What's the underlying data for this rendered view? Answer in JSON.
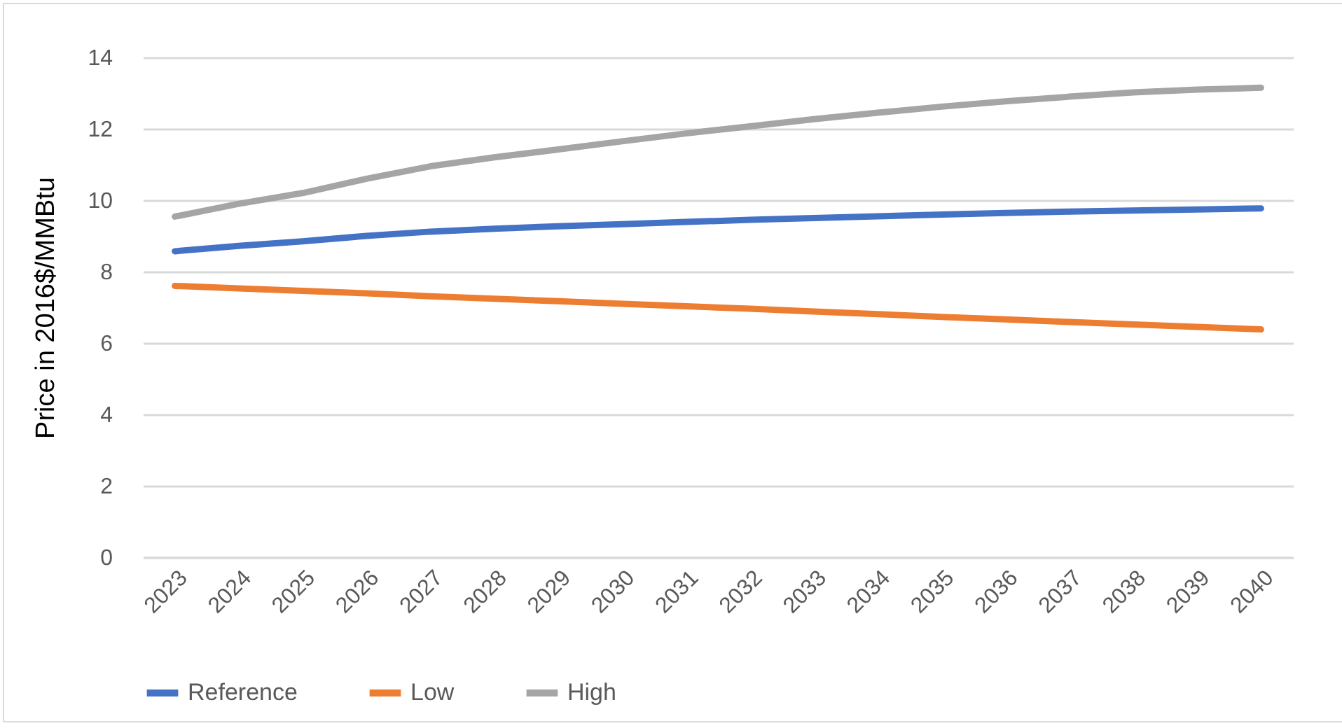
{
  "chart_data": {
    "type": "line",
    "ylabel": "Price in 2016$/MMBtu",
    "categories": [
      "2023",
      "2024",
      "2025",
      "2026",
      "2027",
      "2028",
      "2029",
      "2030",
      "2031",
      "2032",
      "2033",
      "2034",
      "2035",
      "2036",
      "2037",
      "2038",
      "2039",
      "2040"
    ],
    "series": [
      {
        "name": "Reference",
        "color": "#4472c4",
        "values": [
          8.57,
          8.72,
          8.85,
          9.0,
          9.12,
          9.2,
          9.27,
          9.33,
          9.39,
          9.45,
          9.5,
          9.55,
          9.6,
          9.64,
          9.68,
          9.71,
          9.74,
          9.77
        ]
      },
      {
        "name": "Low",
        "color": "#ed7d31",
        "values": [
          7.6,
          7.53,
          7.46,
          7.39,
          7.31,
          7.24,
          7.17,
          7.1,
          7.03,
          6.96,
          6.88,
          6.81,
          6.73,
          6.66,
          6.59,
          6.52,
          6.45,
          6.38
        ]
      },
      {
        "name": "High",
        "color": "#a5a5a5",
        "values": [
          9.54,
          9.9,
          10.2,
          10.6,
          10.95,
          11.2,
          11.42,
          11.65,
          11.87,
          12.07,
          12.27,
          12.45,
          12.62,
          12.77,
          12.9,
          13.02,
          13.1,
          13.15
        ]
      }
    ],
    "ylim": [
      0,
      14
    ],
    "yticks": [
      0,
      2,
      4,
      6,
      8,
      10,
      12,
      14
    ],
    "grid": "y",
    "legend": "bottom",
    "marker": "none",
    "line_style": "solid"
  }
}
